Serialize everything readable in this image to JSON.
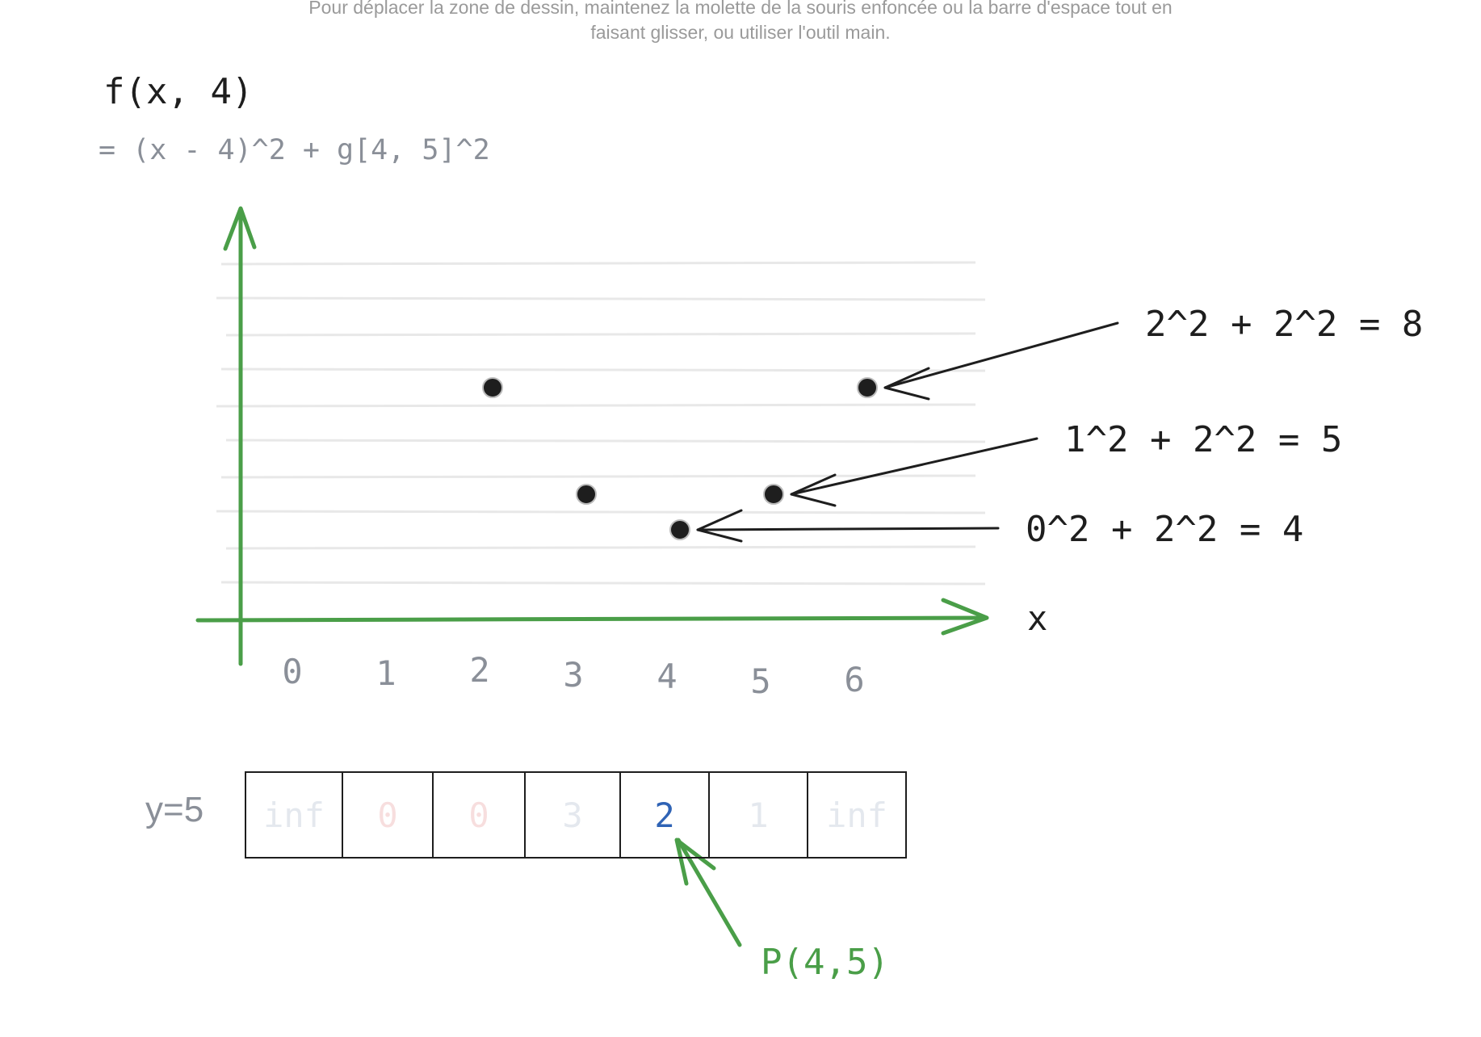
{
  "hint": {
    "line1": "Pour déplacer la zone de dessin, maintenez la molette de la souris enfoncée ou la barre d'espace tout en",
    "line2": "faisant glisser, ou utiliser l'outil main."
  },
  "title": "f(x, 4)",
  "subtitle": "= (x - 4)^2 + g[4, 5]^2",
  "axis": {
    "x_label": "x",
    "x_ticks": [
      "0",
      "1",
      "2",
      "3",
      "4",
      "5",
      "6"
    ]
  },
  "chart_data": {
    "type": "scatter",
    "x": [
      2,
      6,
      3,
      5,
      4
    ],
    "y": [
      8,
      8,
      5,
      5,
      4
    ],
    "xlim": [
      0,
      6
    ],
    "ylim": [
      0,
      10
    ],
    "grid": true
  },
  "annotations": [
    {
      "text": "2^2 + 2^2 = 8",
      "x": 6,
      "y": 8
    },
    {
      "text": "1^2 + 2^2 = 5",
      "x": 5,
      "y": 5
    },
    {
      "text": "0^2 + 2^2 = 4",
      "x": 4,
      "y": 4
    }
  ],
  "row": {
    "label": "y=5",
    "cells": [
      {
        "value": "inf",
        "color": "#e4e8ee"
      },
      {
        "value": "0",
        "color": "#f7dede"
      },
      {
        "value": "0",
        "color": "#f7dede"
      },
      {
        "value": "3",
        "color": "#e4e8ee"
      },
      {
        "value": "2",
        "color": "#2f63b5"
      },
      {
        "value": "1",
        "color": "#e4e8ee"
      },
      {
        "value": "inf",
        "color": "#e4e8ee"
      }
    ]
  },
  "pointer": {
    "label": "P(4,5)",
    "color": "#4a9e48"
  },
  "colors": {
    "axis": "#4a9e48",
    "ink": "#1e1e1e",
    "grid": "#e8e8e8"
  }
}
